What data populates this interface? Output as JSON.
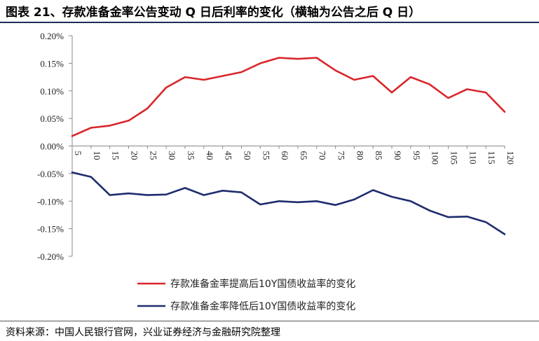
{
  "title": "图表 21、存款准备金率公告变动 Q 日后利率的变化（横轴为公告之后 Q 日）",
  "source": "资料来源：中国人民银行官网，兴业证券经济与金融研究院整理",
  "chart_data": {
    "type": "line",
    "title": "图表 21、存款准备金率公告变动 Q 日后利率的变化（横轴为公告之后 Q 日）",
    "xlabel": "",
    "ylabel": "",
    "x": [
      5,
      10,
      15,
      20,
      25,
      30,
      35,
      40,
      45,
      50,
      55,
      60,
      65,
      70,
      75,
      80,
      85,
      90,
      95,
      100,
      105,
      110,
      115,
      120
    ],
    "ylim": [
      -0.2,
      0.2
    ],
    "yticks": [
      0.2,
      0.15,
      0.1,
      0.05,
      0.0,
      -0.05,
      -0.1,
      -0.15,
      -0.2
    ],
    "ytick_labels": [
      "0.20%",
      "0.15%",
      "0.10%",
      "0.05%",
      "0.00%",
      "-0.05%",
      "-0.10%",
      "-0.15%",
      "-0.20%"
    ],
    "unit": "%",
    "grid": false,
    "legend_position": "bottom",
    "series": [
      {
        "name": "存款准备金率提高后10Y国债收益率的变化",
        "color": "#d9262b",
        "values": [
          0.018,
          0.033,
          0.037,
          0.046,
          0.068,
          0.106,
          0.125,
          0.12,
          0.127,
          0.134,
          0.15,
          0.16,
          0.158,
          0.16,
          0.137,
          0.12,
          0.127,
          0.097,
          0.125,
          0.112,
          0.087,
          0.103,
          0.097,
          0.062
        ]
      },
      {
        "name": "存款准备金率降低后10Y国债收益率的变化",
        "color": "#1f2d6e",
        "values": [
          -0.048,
          -0.056,
          -0.089,
          -0.086,
          -0.089,
          -0.088,
          -0.076,
          -0.089,
          -0.081,
          -0.084,
          -0.106,
          -0.1,
          -0.102,
          -0.1,
          -0.107,
          -0.097,
          -0.08,
          -0.092,
          -0.1,
          -0.117,
          -0.129,
          -0.128,
          -0.138,
          -0.16
        ]
      }
    ]
  }
}
